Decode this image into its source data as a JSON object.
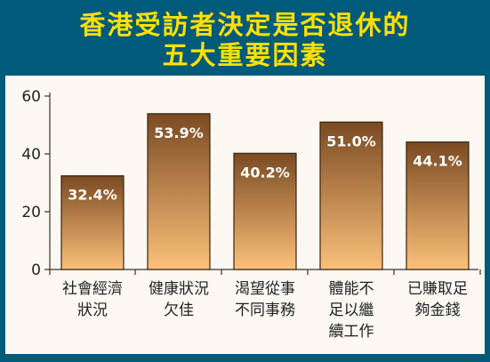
{
  "title": {
    "line1": "香港受訪者決定是否退休的",
    "line2": "五大重要因素"
  },
  "colors": {
    "frame": "#005a7a",
    "title": "#ffe100",
    "bar_top": "#7a4a22",
    "bar_bottom": "#fcc07a",
    "bar_outline": "#3a2410"
  },
  "chart_data": {
    "type": "bar",
    "title": "香港受訪者決定是否退休的五大重要因素",
    "categories": [
      "社會經濟狀況",
      "健康狀況欠佳",
      "渴望從事不同事務",
      "體能不足以繼續工作",
      "已賺取足夠金錢"
    ],
    "category_lines": [
      [
        "社會經濟",
        "狀況"
      ],
      [
        "健康狀況",
        "欠佳"
      ],
      [
        "渴望從事",
        "不同事務"
      ],
      [
        "體能不",
        "足以繼",
        "續工作"
      ],
      [
        "已賺取足",
        "夠金錢"
      ]
    ],
    "values": [
      32.4,
      53.9,
      40.2,
      51.0,
      44.1
    ],
    "value_labels": [
      "32.4%",
      "53.9%",
      "40.2%",
      "51.0%",
      "44.1%"
    ],
    "ylim": [
      0,
      60
    ],
    "yticks": [
      0,
      20,
      40,
      60
    ],
    "xlabel": "",
    "ylabel": "",
    "grid": false,
    "legend": "none"
  }
}
